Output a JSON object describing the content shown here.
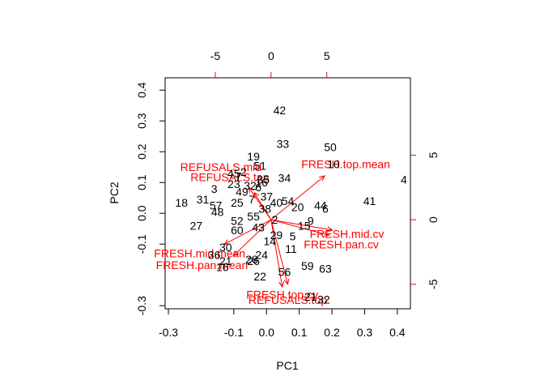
{
  "chart_data": {
    "type": "scatter",
    "subtype": "biplot",
    "xlabel": "PC1",
    "ylabel": "PC2",
    "xlim": [
      -0.31,
      0.44
    ],
    "ylim": [
      -0.31,
      0.44
    ],
    "bottom_ticks": [
      -0.3,
      -0.1,
      0.0,
      0.1,
      0.2,
      0.3,
      0.4
    ],
    "bottom_tick_labels": [
      "-0.3",
      "-0.1",
      "0.0",
      "0.1",
      "0.2",
      "0.3",
      "0.4"
    ],
    "left_ticks": [
      -0.3,
      -0.1,
      0.0,
      0.1,
      0.2,
      0.3,
      0.4
    ],
    "left_tick_labels": [
      "-0.3",
      "-0.1",
      "0.0",
      "0.1",
      "0.2",
      "0.3",
      "0.4"
    ],
    "loading_scale": {
      "xlim": [
        -9.5,
        12.5
      ],
      "ylim": [
        -6.9,
        11.0
      ]
    },
    "top_ticks": [
      -5,
      0,
      5
    ],
    "top_tick_labels": [
      "-5",
      "0",
      "5"
    ],
    "right_ticks": [
      -5,
      0,
      5
    ],
    "right_tick_labels": [
      "-5",
      "0",
      "5"
    ],
    "observation_color": "#000000",
    "loading_color": "#ff0000",
    "observations": [
      {
        "label": "42",
        "x": 0.04,
        "y": 0.335
      },
      {
        "label": "33",
        "x": 0.05,
        "y": 0.225
      },
      {
        "label": "50",
        "x": 0.195,
        "y": 0.215
      },
      {
        "label": "19",
        "x": -0.04,
        "y": 0.185
      },
      {
        "label": "51",
        "x": -0.02,
        "y": 0.155
      },
      {
        "label": "10",
        "x": 0.205,
        "y": 0.16
      },
      {
        "label": "45",
        "x": -0.1,
        "y": 0.13
      },
      {
        "label": "2",
        "x": -0.07,
        "y": 0.135
      },
      {
        "label": "7",
        "x": -0.085,
        "y": 0.12
      },
      {
        "label": "35",
        "x": -0.01,
        "y": 0.11
      },
      {
        "label": "34",
        "x": 0.055,
        "y": 0.115
      },
      {
        "label": "4",
        "x": 0.42,
        "y": 0.11
      },
      {
        "label": "23",
        "x": -0.1,
        "y": 0.095
      },
      {
        "label": "32",
        "x": -0.05,
        "y": 0.09
      },
      {
        "label": "16",
        "x": -0.015,
        "y": 0.1
      },
      {
        "label": "3",
        "x": -0.16,
        "y": 0.08
      },
      {
        "label": "49",
        "x": -0.075,
        "y": 0.07
      },
      {
        "label": "6",
        "x": -0.025,
        "y": 0.085
      },
      {
        "label": "37",
        "x": 0.0,
        "y": 0.055
      },
      {
        "label": "31",
        "x": -0.195,
        "y": 0.045
      },
      {
        "label": "25",
        "x": -0.09,
        "y": 0.035
      },
      {
        "label": "7",
        "x": -0.045,
        "y": 0.045
      },
      {
        "label": "40",
        "x": 0.03,
        "y": 0.035
      },
      {
        "label": "54",
        "x": 0.065,
        "y": 0.04
      },
      {
        "label": "41",
        "x": 0.315,
        "y": 0.04
      },
      {
        "label": "18",
        "x": -0.26,
        "y": 0.035
      },
      {
        "label": "57",
        "x": -0.155,
        "y": 0.025
      },
      {
        "label": "48",
        "x": -0.15,
        "y": 0.005
      },
      {
        "label": "38",
        "x": -0.005,
        "y": 0.015
      },
      {
        "label": "20",
        "x": 0.095,
        "y": 0.02
      },
      {
        "label": "44",
        "x": 0.165,
        "y": 0.025
      },
      {
        "label": "6",
        "x": 0.18,
        "y": 0.015
      },
      {
        "label": "55",
        "x": -0.04,
        "y": -0.01
      },
      {
        "label": "52",
        "x": -0.09,
        "y": -0.025
      },
      {
        "label": "2",
        "x": 0.025,
        "y": -0.02
      },
      {
        "label": "9",
        "x": 0.135,
        "y": -0.025
      },
      {
        "label": "27",
        "x": -0.215,
        "y": -0.04
      },
      {
        "label": "43",
        "x": -0.025,
        "y": -0.045
      },
      {
        "label": "60",
        "x": -0.09,
        "y": -0.055
      },
      {
        "label": "15",
        "x": 0.115,
        "y": -0.04
      },
      {
        "label": "29",
        "x": 0.03,
        "y": -0.07
      },
      {
        "label": "5",
        "x": 0.08,
        "y": -0.075
      },
      {
        "label": "14",
        "x": 0.01,
        "y": -0.09
      },
      {
        "label": "11",
        "x": 0.075,
        "y": -0.115
      },
      {
        "label": "30",
        "x": -0.125,
        "y": -0.11
      },
      {
        "label": "36",
        "x": -0.16,
        "y": -0.135
      },
      {
        "label": "24",
        "x": -0.015,
        "y": -0.135
      },
      {
        "label": "21",
        "x": -0.125,
        "y": -0.155
      },
      {
        "label": "28",
        "x": -0.045,
        "y": -0.15
      },
      {
        "label": "26",
        "x": -0.04,
        "y": -0.155
      },
      {
        "label": "59",
        "x": 0.125,
        "y": -0.17
      },
      {
        "label": "63",
        "x": 0.18,
        "y": -0.18
      },
      {
        "label": "16",
        "x": -0.135,
        "y": -0.175
      },
      {
        "label": "56",
        "x": 0.055,
        "y": -0.19
      },
      {
        "label": "22",
        "x": -0.02,
        "y": -0.205
      },
      {
        "label": "21",
        "x": 0.135,
        "y": -0.27
      },
      {
        "label": "32",
        "x": 0.175,
        "y": -0.28
      }
    ],
    "loadings": [
      {
        "label": "FRESH.top.mean",
        "x": 4.8,
        "y": 3.4,
        "label_x": 6.7,
        "label_y": 4.3
      },
      {
        "label": "REFUSALS.mid",
        "x": -2.0,
        "y": 2.5,
        "label_x": -4.5,
        "label_y": 4.1
      },
      {
        "label": "REFUSALS.tan",
        "x": -1.5,
        "y": 2.1,
        "label_x": -3.7,
        "label_y": 3.3
      },
      {
        "label": "FRESH.mid.cv",
        "x": 5.5,
        "y": -0.8,
        "label_x": 6.8,
        "label_y": -1.1
      },
      {
        "label": "FRESH.pan.cv",
        "x": 5.2,
        "y": -1.2,
        "label_x": 6.3,
        "label_y": -1.9
      },
      {
        "label": "FRESH.mid.mean",
        "x": -4.2,
        "y": -1.9,
        "label_x": -6.4,
        "label_y": -2.6
      },
      {
        "label": "FRESH.pan.mean",
        "x": -3.4,
        "y": -2.8,
        "label_x": -6.2,
        "label_y": -3.5
      },
      {
        "label": "FRESH.top.cv",
        "x": 1.5,
        "y": -5.0,
        "label_x": 1.0,
        "label_y": -5.8
      },
      {
        "label": "REFUSALS.top",
        "x": 1.0,
        "y": -5.2,
        "label_x": 1.5,
        "label_y": -6.2
      }
    ]
  }
}
